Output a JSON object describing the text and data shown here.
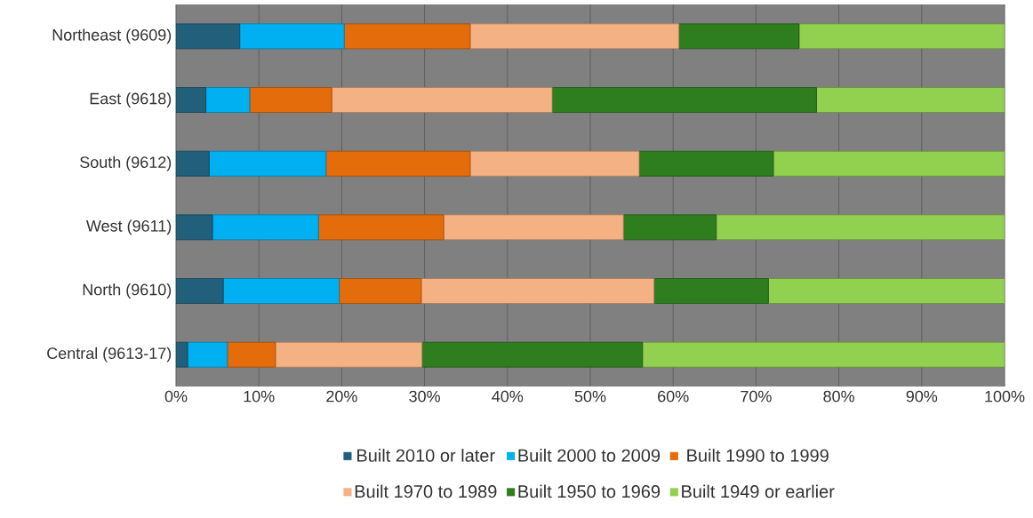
{
  "chart_data": {
    "type": "bar",
    "orientation": "horizontal",
    "stacked": true,
    "grid": "x",
    "legend": "bottom",
    "categories": [
      "Northeast (9609)",
      "East (9618)",
      "South (9612)",
      "West (9611)",
      "North (9610)",
      "Central (9613-17)"
    ],
    "series": [
      {
        "name": "Built 2010 or later",
        "color": "#215f7a",
        "values": [
          7.7,
          3.6,
          4.0,
          4.4,
          5.7,
          1.4
        ]
      },
      {
        "name": "Built 2000 to 2009",
        "color": "#00b0f0",
        "values": [
          12.6,
          5.3,
          14.1,
          12.8,
          14.0,
          4.8
        ]
      },
      {
        "name": "Built 1990 to 1999",
        "color": "#e46c0a",
        "values": [
          15.2,
          9.9,
          17.4,
          15.1,
          9.9,
          5.8
        ]
      },
      {
        "name": "Built 1970 to 1989",
        "color": "#f4b183",
        "values": [
          25.2,
          26.6,
          20.4,
          21.7,
          28.1,
          17.7
        ]
      },
      {
        "name": "Built 1950 to 1969",
        "color": "#2e7d1f",
        "values": [
          14.5,
          31.9,
          16.2,
          11.2,
          13.8,
          26.6
        ]
      },
      {
        "name": "Built 1949 or earlier",
        "color": "#92d050",
        "values": [
          24.8,
          22.7,
          27.9,
          34.8,
          28.5,
          43.7
        ]
      }
    ],
    "xlim": [
      0,
      100
    ],
    "xticks": [
      {
        "value": 0,
        "label": "0%"
      },
      {
        "value": 10,
        "label": "10%"
      },
      {
        "value": 20,
        "label": "20%"
      },
      {
        "value": 30,
        "label": "30%"
      },
      {
        "value": 40,
        "label": "40%"
      },
      {
        "value": 50,
        "label": "50%"
      },
      {
        "value": 60,
        "label": "60%"
      },
      {
        "value": 70,
        "label": "70%"
      },
      {
        "value": 80,
        "label": "80%"
      },
      {
        "value": 90,
        "label": "90%"
      },
      {
        "value": 100,
        "label": "100%"
      }
    ]
  }
}
